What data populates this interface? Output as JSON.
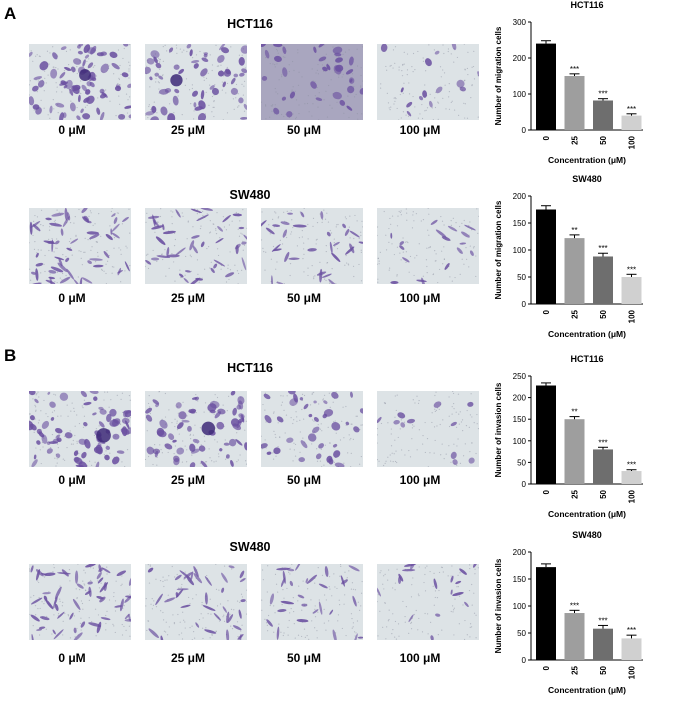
{
  "panel_labels": [
    "A",
    "B"
  ],
  "image_rows": [
    {
      "title": "HCT116",
      "style": "dense-large",
      "labels": [
        "0 μM",
        "25 μM",
        "50 μM",
        "100 μM"
      ],
      "densities": [
        1.0,
        0.75,
        0.45,
        0.2
      ]
    },
    {
      "title": "SW480",
      "style": "elongated",
      "labels": [
        "0 μM",
        "25 μM",
        "50 μM",
        "100 μM"
      ],
      "densities": [
        1.0,
        0.75,
        0.55,
        0.3
      ]
    },
    {
      "title": "HCT116",
      "style": "dense-large",
      "labels": [
        "0 μM",
        "25 μM",
        "50 μM",
        "100 μM"
      ],
      "densities": [
        1.0,
        0.8,
        0.5,
        0.15
      ]
    },
    {
      "title": "SW480",
      "style": "elongated",
      "labels": [
        "0 μM",
        "25 μM",
        "50 μM",
        "100 μM"
      ],
      "densities": [
        1.0,
        0.65,
        0.5,
        0.3
      ]
    }
  ],
  "colors": {
    "purple": "#6a4fa0",
    "background": "#dde3e6",
    "bars": [
      "#000000",
      "#9e9e9e",
      "#6e6e6e",
      "#d0d0d0"
    ]
  },
  "chart_data": [
    {
      "type": "bar",
      "title": "HCT116",
      "categories": [
        "0",
        "25",
        "50",
        "100"
      ],
      "values": [
        240,
        150,
        82,
        40
      ],
      "errors": [
        8,
        6,
        5,
        5
      ],
      "significance": [
        "",
        "***",
        "***",
        "***"
      ],
      "ylabel": "Number of migration cells",
      "xlabel": "Concentration (μM)",
      "ylim": [
        0,
        300
      ],
      "yticks": [
        0,
        100,
        200,
        300
      ]
    },
    {
      "type": "bar",
      "title": "SW480",
      "categories": [
        "0",
        "25",
        "50",
        "100"
      ],
      "values": [
        175,
        122,
        88,
        50
      ],
      "errors": [
        7,
        6,
        6,
        5
      ],
      "significance": [
        "",
        "**",
        "***",
        "***"
      ],
      "ylabel": "Number of migration cells",
      "xlabel": "Concentration (μM)",
      "ylim": [
        0,
        200
      ],
      "yticks": [
        0,
        50,
        100,
        150,
        200
      ]
    },
    {
      "type": "bar",
      "title": "HCT116",
      "categories": [
        "0",
        "25",
        "50",
        "100"
      ],
      "values": [
        228,
        150,
        80,
        30
      ],
      "errors": [
        6,
        6,
        5,
        3
      ],
      "significance": [
        "",
        "**",
        "***",
        "***"
      ],
      "ylabel": "Number of invasion cells",
      "xlabel": "Concentration (μM)",
      "ylim": [
        0,
        250
      ],
      "yticks": [
        0,
        50,
        100,
        150,
        200,
        250
      ]
    },
    {
      "type": "bar",
      "title": "SW480",
      "categories": [
        "0",
        "25",
        "50",
        "100"
      ],
      "values": [
        172,
        87,
        58,
        40
      ],
      "errors": [
        6,
        5,
        6,
        6
      ],
      "significance": [
        "",
        "***",
        "***",
        "***"
      ],
      "ylabel": "Number of invasion cells",
      "xlabel": "Concentration (μM)",
      "ylim": [
        0,
        200
      ],
      "yticks": [
        0,
        50,
        100,
        150,
        200
      ]
    }
  ]
}
